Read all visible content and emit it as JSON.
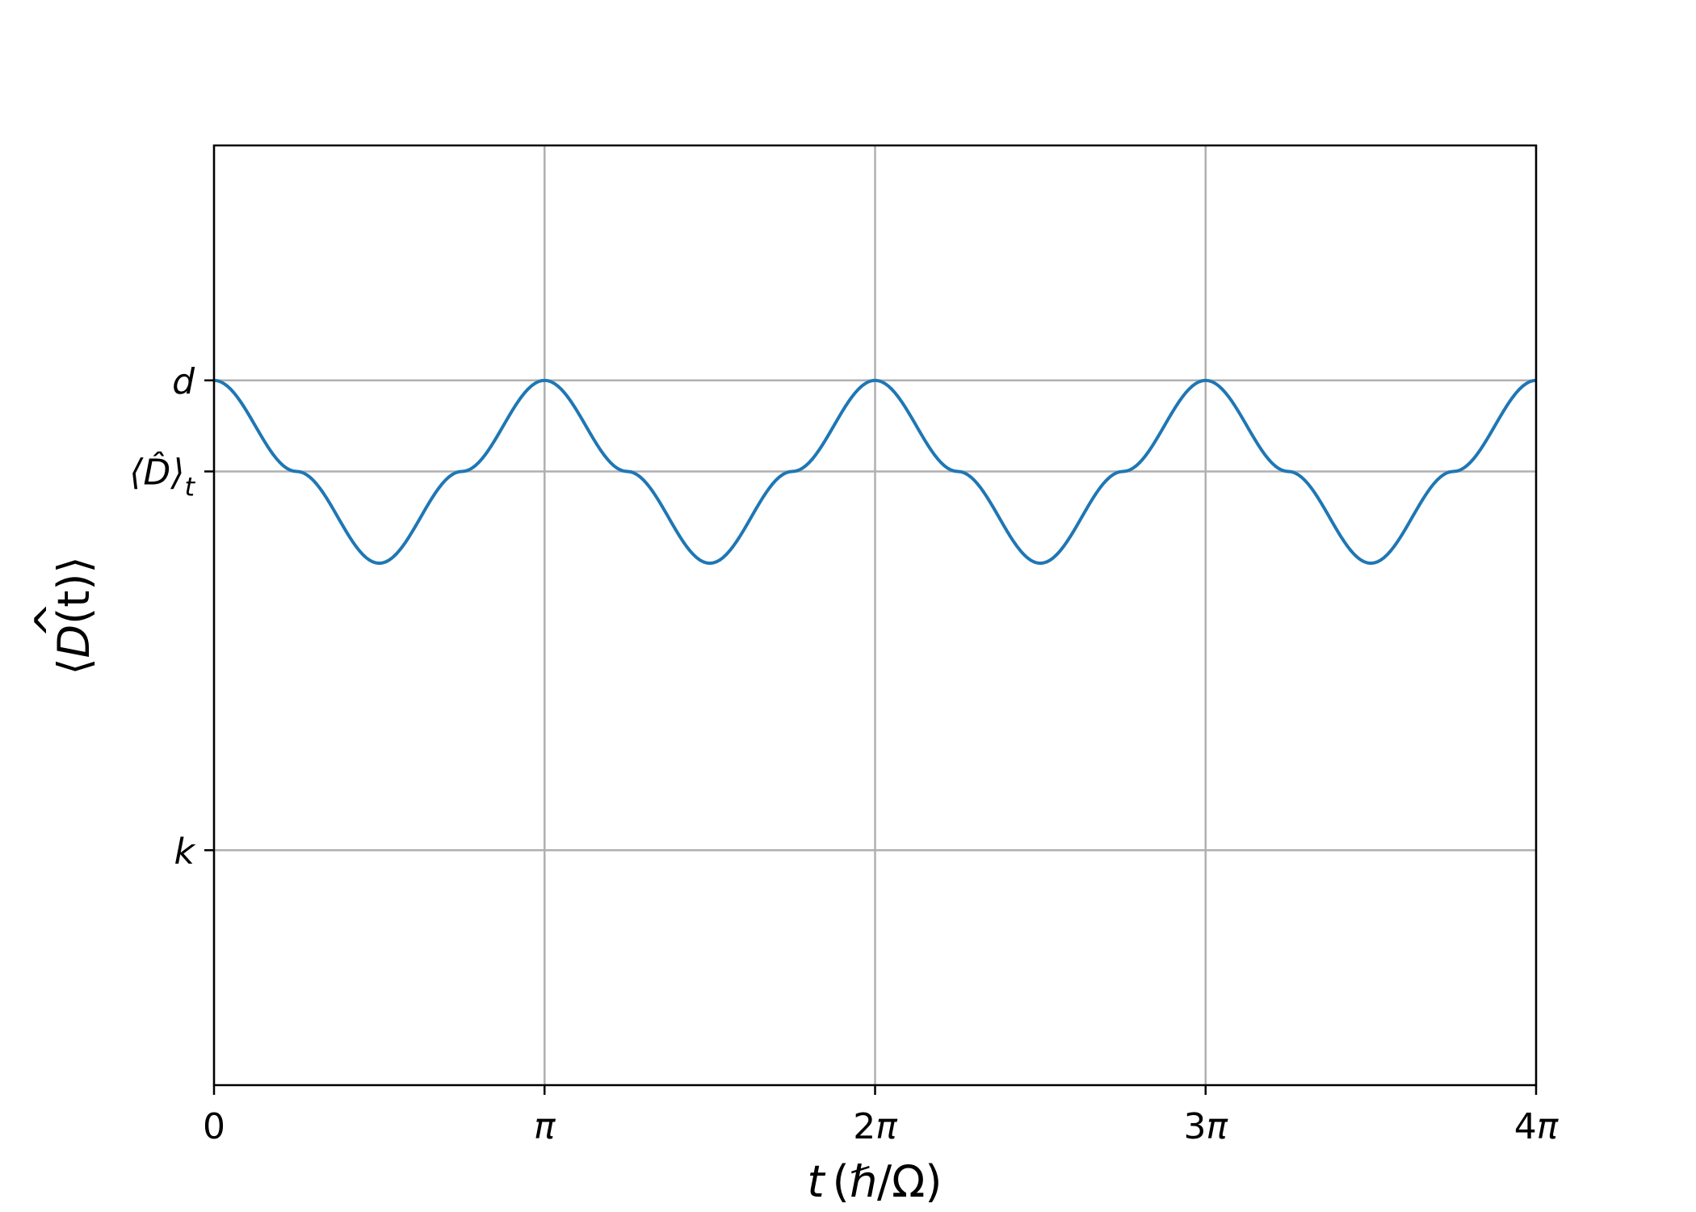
{
  "chart_data": {
    "type": "line",
    "xlabel_parts": {
      "var": "t",
      "unit": "(ℏ/Ω)"
    },
    "ylabel_parts": {
      "open": "⟨",
      "var": "D",
      "hat": "^",
      "arg": "(t)",
      "close": "⟩"
    },
    "x_range": [
      0,
      12.566
    ],
    "y_range": [
      -0.3,
      1.0
    ],
    "x_ticks": [
      {
        "value": 0,
        "label": "0"
      },
      {
        "value": 3.1416,
        "label": "π"
      },
      {
        "value": 6.2832,
        "label": "2π"
      },
      {
        "value": 9.4248,
        "label": "3π"
      },
      {
        "value": 12.566,
        "label": "4π"
      }
    ],
    "y_ticks": [
      {
        "value": 0.675,
        "label": "d"
      },
      {
        "value": 0.549,
        "label": "⟨D̂⟩",
        "subscript": "t"
      },
      {
        "value": 0.025,
        "label": "k"
      }
    ],
    "grid": true,
    "series": [
      {
        "color": "#1f77b4",
        "x": [
          0,
          0.7854,
          1.5708,
          2.3562,
          3.1416,
          3.927,
          4.7124,
          5.4978,
          6.2832,
          7.0686,
          7.854,
          8.6394,
          9.4248,
          10.2102,
          10.9956,
          11.781,
          12.566
        ],
        "y": [
          0.675,
          0.549,
          0.422,
          0.549,
          0.675,
          0.549,
          0.422,
          0.549,
          0.675,
          0.549,
          0.422,
          0.549,
          0.675,
          0.549,
          0.422,
          0.549,
          0.675
        ]
      }
    ]
  }
}
